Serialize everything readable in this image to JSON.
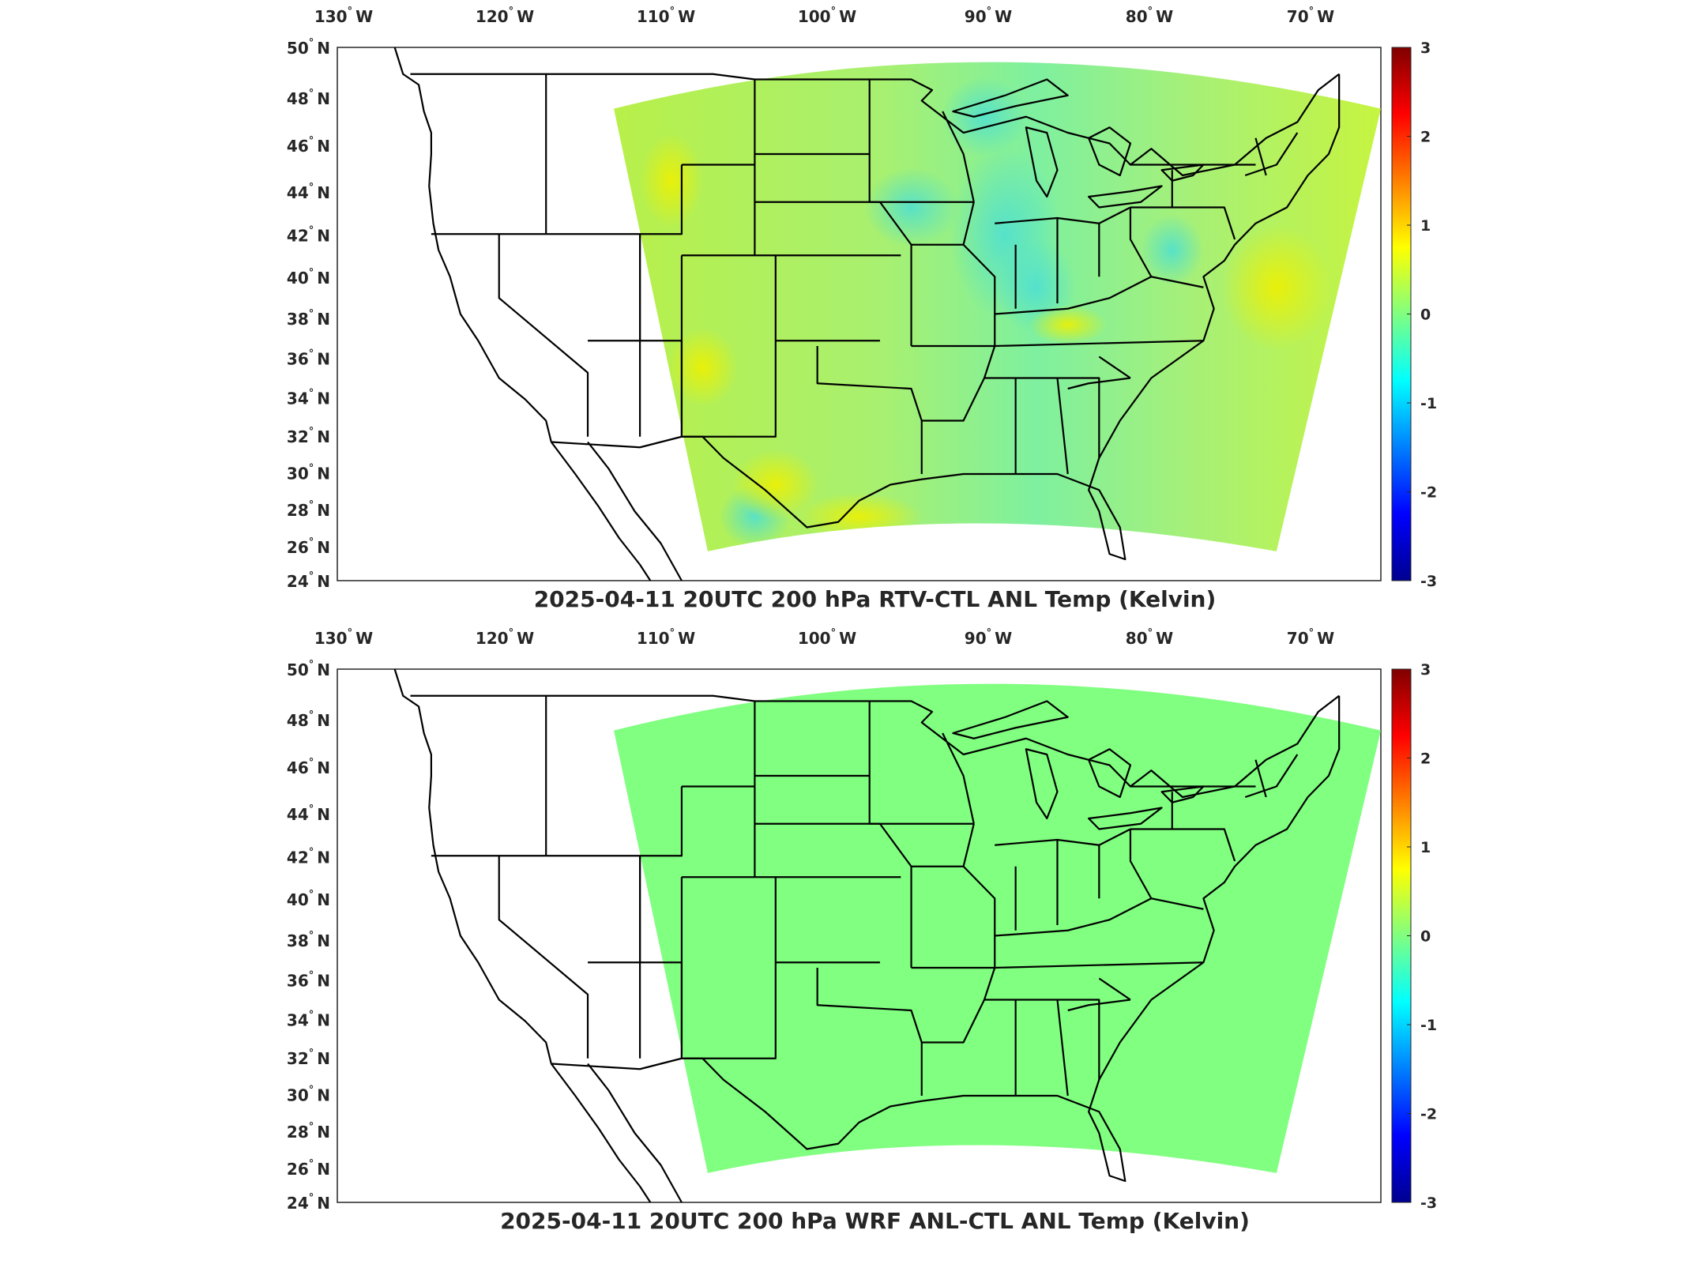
{
  "colors": {
    "anomaly_field_main": "#9cf07a",
    "zero_field": "#80ff80",
    "map_lines": "#000000",
    "frame": "#262626",
    "colormap": [
      "#00008f",
      "#0000ff",
      "#0080ff",
      "#00ffff",
      "#80ff80",
      "#ffff00",
      "#ff8000",
      "#ff0000",
      "#800000"
    ]
  },
  "lon_ticks": [
    "130",
    "120",
    "110",
    "100",
    "90",
    "80",
    "70"
  ],
  "lon_suffix": "W",
  "lat_ticks": [
    "50",
    "48",
    "46",
    "44",
    "42",
    "40",
    "38",
    "36",
    "34",
    "32",
    "30",
    "28",
    "26",
    "24"
  ],
  "lat_suffix": "N",
  "degree_mark": "°",
  "colorbar_ticks": [
    "3",
    "2",
    "1",
    "0",
    "-1",
    "-2",
    "-3"
  ],
  "panels": [
    {
      "title": "2025-04-11 20UTC 200 hPa RTV-CTL ANL Temp (Kelvin)",
      "field": "anomaly"
    },
    {
      "title": "2025-04-11 20UTC 200 hPa WRF ANL-CTL ANL Temp (Kelvin)",
      "field": "zero"
    }
  ]
}
